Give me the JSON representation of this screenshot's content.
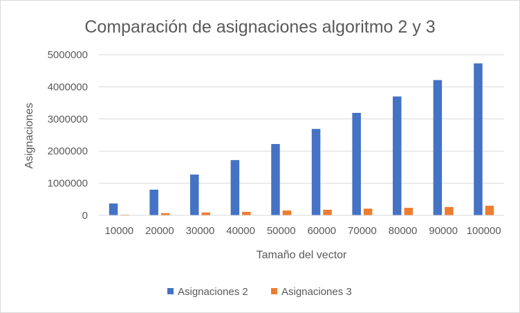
{
  "chart_data": {
    "type": "bar",
    "title": "Comparación de asignaciones algoritmo 2 y 3",
    "xlabel": "Tamaño del vector",
    "ylabel": "Asignaciones",
    "categories": [
      "10000",
      "20000",
      "30000",
      "40000",
      "50000",
      "60000",
      "70000",
      "80000",
      "90000",
      "100000"
    ],
    "yticks": [
      "0",
      "1000000",
      "2000000",
      "3000000",
      "4000000",
      "5000000"
    ],
    "ylim": [
      0,
      5000000
    ],
    "grid": true,
    "legend_position": "bottom",
    "series": [
      {
        "name": "Asignaciones 2",
        "color": "#4472c4",
        "values": [
          370000,
          800000,
          1270000,
          1720000,
          2220000,
          2690000,
          3190000,
          3700000,
          4210000,
          4730000
        ]
      },
      {
        "name": "Asignaciones 3",
        "color": "#ed7d31",
        "values": [
          20000,
          70000,
          90000,
          110000,
          150000,
          175000,
          210000,
          235000,
          260000,
          300000
        ]
      }
    ]
  }
}
